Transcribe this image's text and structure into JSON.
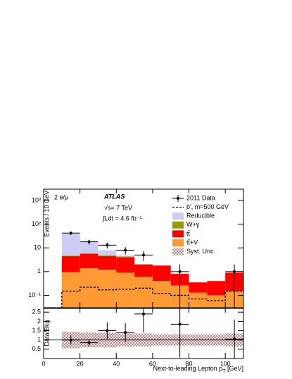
{
  "chart_data": [
    {
      "type": "histogram",
      "log_y": true,
      "annotations": [
        "2 e/μ",
        "ATLAS",
        "√s= 7 TeV",
        "∫Ldt = 4.6 fb⁻¹"
      ],
      "ylabel": "Events / 10 GeV",
      "bins": [
        0,
        10,
        20,
        30,
        40,
        50,
        60,
        70,
        80,
        90,
        100,
        110
      ],
      "series": [
        {
          "name": "tt̄+V",
          "color": "#ff9933",
          "values": [
            0,
            0.95,
            1.4,
            1.2,
            0.9,
            0.6,
            0.4,
            0.26,
            0.13,
            0.1,
            0.15
          ]
        },
        {
          "name": "tt̄",
          "color": "#ff0000",
          "values": [
            0,
            3.5,
            4.1,
            3.3,
            3.1,
            1.4,
            1.4,
            0.54,
            0.22,
            0.3,
            0.75
          ]
        },
        {
          "name": "W+γ",
          "color": "#999900",
          "values": [
            0,
            0.25,
            0.5,
            0.3,
            0.3,
            0.05,
            0,
            0,
            0,
            0,
            0
          ]
        },
        {
          "name": "Reducible",
          "color": "#ccccf5",
          "values": [
            0,
            35,
            11,
            3.2,
            0.5,
            0.05,
            0,
            0,
            0,
            0,
            0
          ]
        }
      ],
      "signal": {
        "name": "b', m=500 GeV",
        "color": "#000000",
        "values": [
          0.03,
          0.15,
          0.22,
          0.17,
          0.18,
          0.2,
          0.12,
          0.1,
          0.07,
          0.06,
          0.15
        ]
      },
      "data": {
        "name": "2011 Data",
        "color": "#000000",
        "x": [
          15,
          25,
          35,
          45,
          55,
          75,
          105
        ],
        "xerr": [
          5,
          5,
          5,
          5,
          5,
          5,
          5
        ],
        "values": [
          42,
          18,
          13,
          8,
          5,
          1,
          1
        ],
        "errors": [
          6.5,
          4.2,
          3.6,
          2.8,
          2.2,
          1,
          1
        ]
      },
      "xlim": [
        0,
        110
      ],
      "xticks": [
        0,
        20,
        40,
        60,
        80,
        100
      ],
      "ylim": [
        0.03,
        3000
      ],
      "yticks": [
        {
          "value": 0.1,
          "label": "10⁻¹"
        },
        1,
        10,
        {
          "value": 100,
          "label": "10²"
        },
        {
          "value": 1000,
          "label": "10³"
        }
      ]
    },
    {
      "type": "errorbar",
      "ylabel": "Data/Bkg",
      "xlabel": "Next-to-leading Lepton p",
      "xlabel_sub": "T",
      "xlabel_unit": " [GeV]",
      "x": [
        15,
        25,
        35,
        45,
        55,
        75,
        105
      ],
      "xerr": [
        5,
        5,
        5,
        5,
        5,
        5,
        5
      ],
      "values": [
        1.0,
        0.85,
        1.5,
        1.4,
        2.4,
        1.85,
        1.05
      ],
      "errors": [
        0.25,
        0.2,
        0.45,
        0.5,
        1.0,
        1.8,
        1.05
      ],
      "band": {
        "name": "Syst. Unc.",
        "color": "#a06060",
        "values": [
          null,
          0.45,
          0.4,
          0.4,
          0.35,
          0.35,
          0.3,
          0.3,
          0.3,
          0.3,
          0.35
        ]
      },
      "reference": 1,
      "xlim": [
        0,
        110
      ],
      "xticks": [
        0,
        20,
        40,
        60,
        80,
        100
      ],
      "ylim": [
        0,
        2.7
      ],
      "yticks": [
        0.5,
        1,
        1.5,
        2,
        2.5
      ]
    }
  ]
}
